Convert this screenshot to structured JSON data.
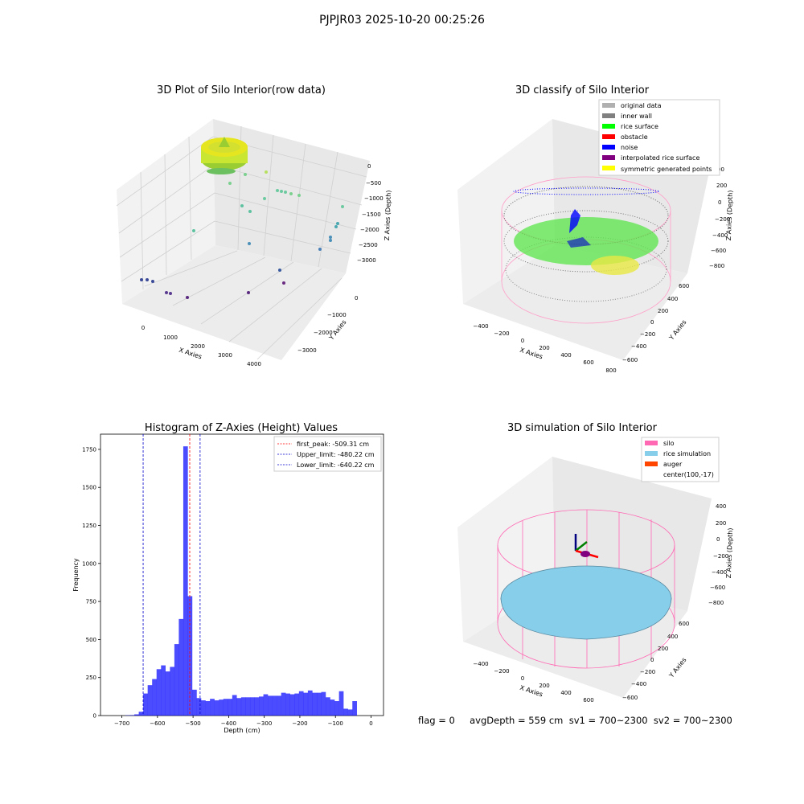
{
  "figure_title": "PJPJR03 2025-10-20 00:25:26",
  "panels": {
    "raw": {
      "title": "3D Plot of Silo Interior(row data)",
      "x_ticks": [
        "0",
        "1000",
        "2000",
        "3000",
        "4000"
      ],
      "y_ticks": [
        "0",
        "−1000",
        "−2000",
        "−3000"
      ],
      "z_ticks": [
        "0",
        "−500",
        "−1000",
        "−1500",
        "−2000",
        "−2500",
        "−3000"
      ],
      "x_label": "X Axies",
      "y_label": "Y Axies",
      "z_label": "Z Axies (Depth)"
    },
    "classify": {
      "title": "3D classify of Silo Interior",
      "x_ticks": [
        "−400",
        "−200",
        "0",
        "200",
        "400",
        "600",
        "800"
      ],
      "y_ticks": [
        "600",
        "400",
        "200",
        "0",
        "−200",
        "−400",
        "−600"
      ],
      "z_ticks": [
        "200",
        "0",
        "−200",
        "−400",
        "−600",
        "−800"
      ],
      "x_label": "X Axies",
      "y_label": "Y Axies",
      "z_label": "Z Axies (Depth)",
      "z_tick_partial": "00",
      "legend": [
        {
          "label": "original data",
          "color": "#b0b0b0"
        },
        {
          "label": "inner wall",
          "color": "#808080"
        },
        {
          "label": "rice surface",
          "color": "#00ff00"
        },
        {
          "label": "obstacle",
          "color": "#ff0000"
        },
        {
          "label": "noise",
          "color": "#0000ff"
        },
        {
          "label": "interpolated rice surface",
          "color": "#800080"
        },
        {
          "label": "symmetric generated points",
          "color": "#ffff00"
        }
      ]
    },
    "simulation": {
      "title": "3D simulation of Silo Interior",
      "x_ticks": [
        "−400",
        "−200",
        "0",
        "200",
        "400",
        "600"
      ],
      "y_ticks": [
        "600",
        "400",
        "200",
        "0",
        "−200",
        "−400",
        "−600"
      ],
      "z_ticks": [
        "400",
        "200",
        "0",
        "−200",
        "−400",
        "−600",
        "−800"
      ],
      "x_label": "X Axies",
      "y_label": "Y Axies",
      "z_label": "Z Axies (Depth)",
      "legend": [
        {
          "label": "silo",
          "color": "#ff69b4"
        },
        {
          "label": "rice simulation",
          "color": "#87ceeb"
        },
        {
          "label": "auger",
          "color": "#ff4500"
        },
        {
          "label": "center(100,-17)",
          "color": ""
        }
      ]
    }
  },
  "status_line": "flag = 0     avgDepth = 559 cm  sv1 = 700~2300  sv2 = 700~2300",
  "chart_data": {
    "type": "bar",
    "title": "Histogram of Z-Axies (Height) Values",
    "xlabel": "Depth (cm)",
    "ylabel": "Frequency",
    "xlim": [
      -760,
      35
    ],
    "ylim": [
      0,
      1850
    ],
    "x_ticks": [
      -700,
      -600,
      -500,
      -400,
      -300,
      -200,
      -100,
      0
    ],
    "y_ticks": [
      0,
      250,
      500,
      750,
      1000,
      1250,
      1500,
      1750
    ],
    "bin_width": 12.5,
    "bins_start": [
      -690,
      -677.5,
      -665,
      -652.5,
      -640,
      -627.5,
      -615,
      -602.5,
      -590,
      -577.5,
      -565,
      -552.5,
      -540,
      -527.5,
      -515,
      -502.5,
      -490,
      -477.5,
      -465,
      -452.5,
      -440,
      -427.5,
      -415,
      -402.5,
      -390,
      -377.5,
      -365,
      -352.5,
      -340,
      -327.5,
      -315,
      -302.5,
      -290,
      -277.5,
      -265,
      -252.5,
      -240,
      -227.5,
      -215,
      -202.5,
      -190,
      -177.5,
      -165,
      -152.5,
      -140,
      -127.5,
      -115,
      -102.5,
      -90,
      -77.5,
      -65,
      -52.5,
      -40,
      -27.5,
      -15,
      -2.5
    ],
    "values": [
      2,
      3,
      8,
      25,
      145,
      200,
      240,
      305,
      330,
      290,
      320,
      470,
      635,
      1770,
      785,
      170,
      115,
      100,
      95,
      110,
      100,
      105,
      110,
      110,
      135,
      115,
      120,
      120,
      120,
      120,
      125,
      140,
      130,
      130,
      130,
      150,
      145,
      140,
      145,
      160,
      150,
      165,
      150,
      150,
      155,
      120,
      105,
      95,
      160,
      45,
      40,
      95,
      0,
      0,
      0,
      0
    ],
    "bar_color": "#0000ff",
    "vlines": [
      {
        "label": "first_peak: -509.31 cm",
        "x": -509.31,
        "color": "#ff0000"
      },
      {
        "label": "Upper_limit: -480.22 cm",
        "x": -480.22,
        "color": "#0000cc"
      },
      {
        "label": "Lower_limit: -640.22 cm",
        "x": -640.22,
        "color": "#0000cc"
      }
    ],
    "legend_position": "upper right"
  }
}
